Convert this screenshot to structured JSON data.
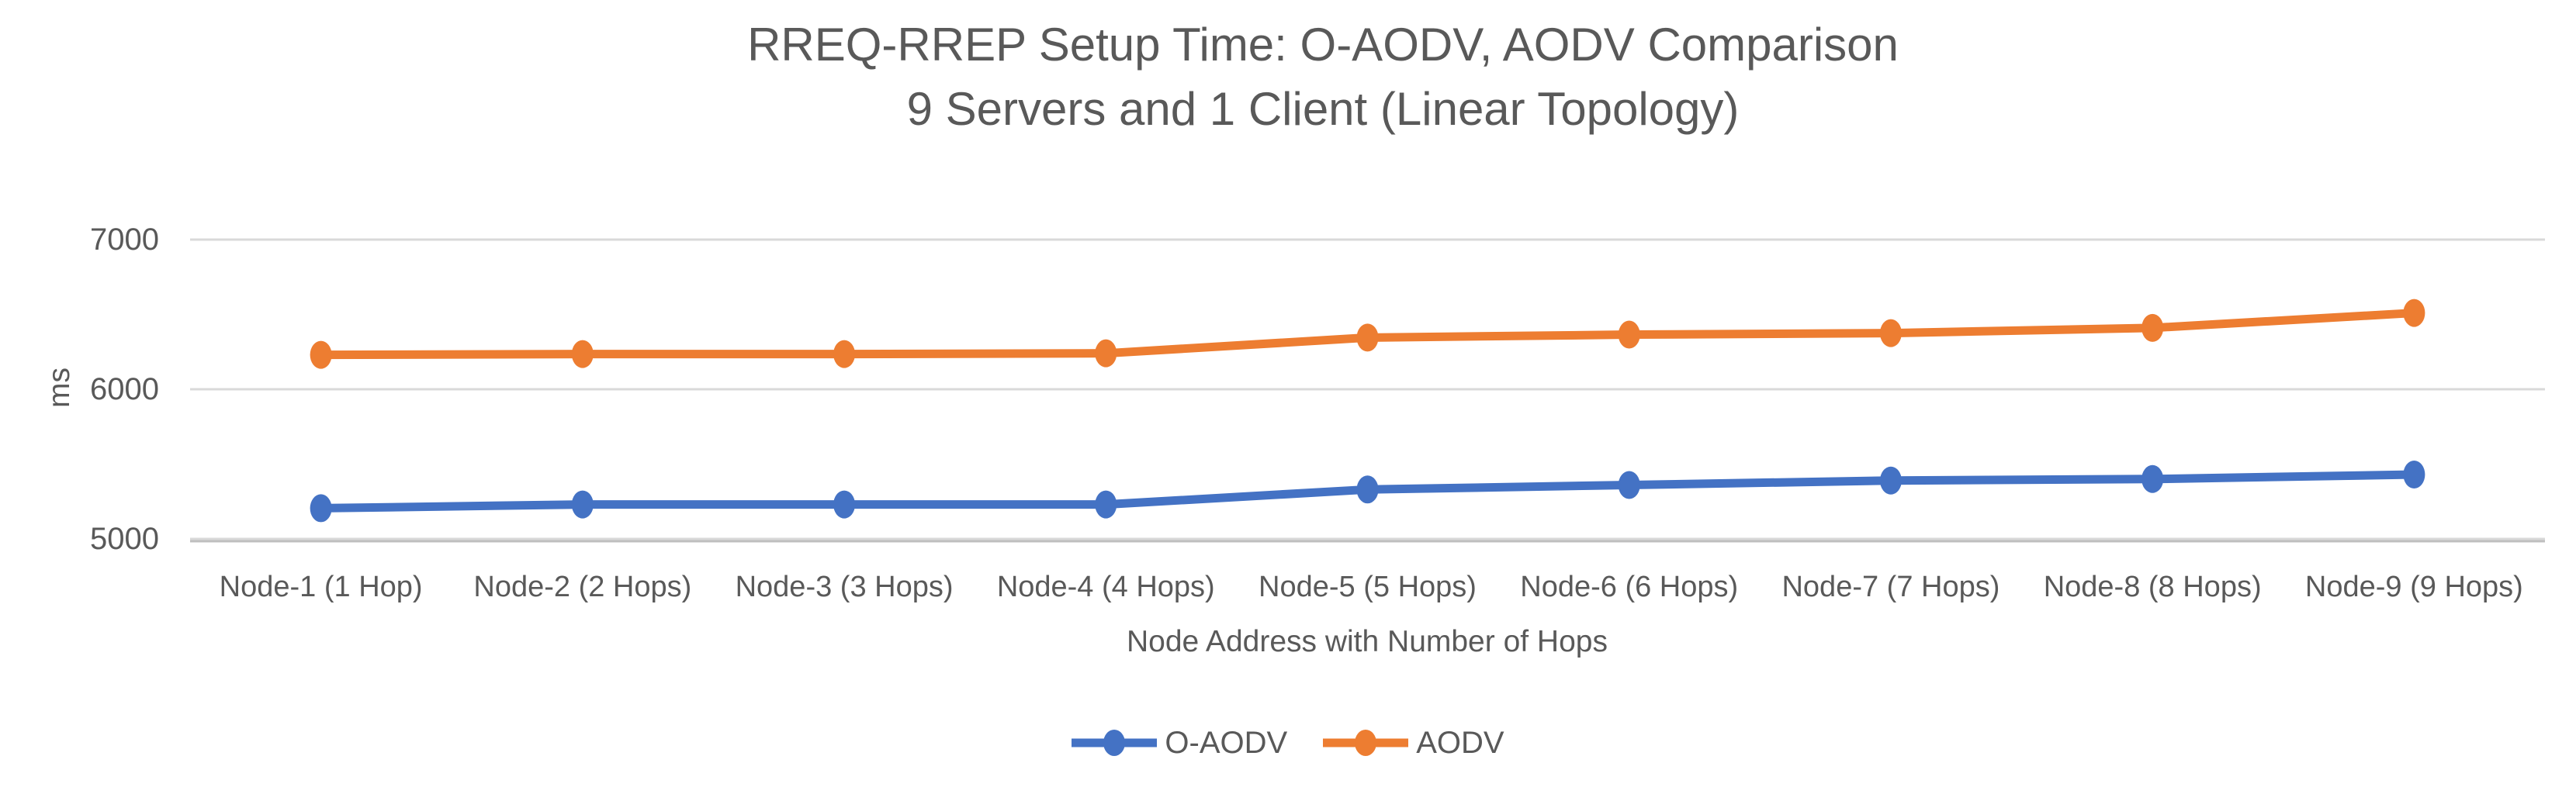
{
  "chart": {
    "title_line1": "RREQ-RREP Setup Time: O-AODV, AODV Comparison",
    "title_line2": "9 Servers and 1 Client (Linear Topology)",
    "y_axis_title": "ms",
    "x_axis_title": "Node Address with Number of Hops"
  },
  "colors": {
    "o_aodv_line": "#4472C4",
    "aodv_line": "#ED7D31",
    "text": "#595959",
    "gridline": "#D9D9D9",
    "axis_line": "#BFBFBF",
    "background": "#FFFFFF"
  },
  "chart_data": {
    "type": "line",
    "title": "RREQ-RREP Setup Time: O-AODV, AODV Comparison",
    "subtitle": "9 Servers and 1 Client (Linear Topology)",
    "xlabel": "Node Address with Number of Hops",
    "ylabel": "ms",
    "ylim": [
      5000,
      7000
    ],
    "yticks": [
      5000,
      6000,
      7000
    ],
    "grid": true,
    "legend_position": "bottom",
    "marker": "circle",
    "categories": [
      "Node-1 (1 Hop)",
      "Node-2 (2 Hops)",
      "Node-3 (3 Hops)",
      "Node-4 (4 Hops)",
      "Node-5 (5 Hops)",
      "Node-6 (6 Hops)",
      "Node-7 (7 Hops)",
      "Node-8 (8 Hops)",
      "Node-9 (9 Hops)"
    ],
    "series": [
      {
        "name": "O-AODV",
        "color": "#4472C4",
        "values": [
          5205,
          5230,
          5230,
          5230,
          5330,
          5360,
          5390,
          5400,
          5430
        ]
      },
      {
        "name": "AODV",
        "color": "#ED7D31",
        "values": [
          6230,
          6235,
          6235,
          6240,
          6345,
          6365,
          6375,
          6410,
          6510
        ]
      }
    ]
  }
}
